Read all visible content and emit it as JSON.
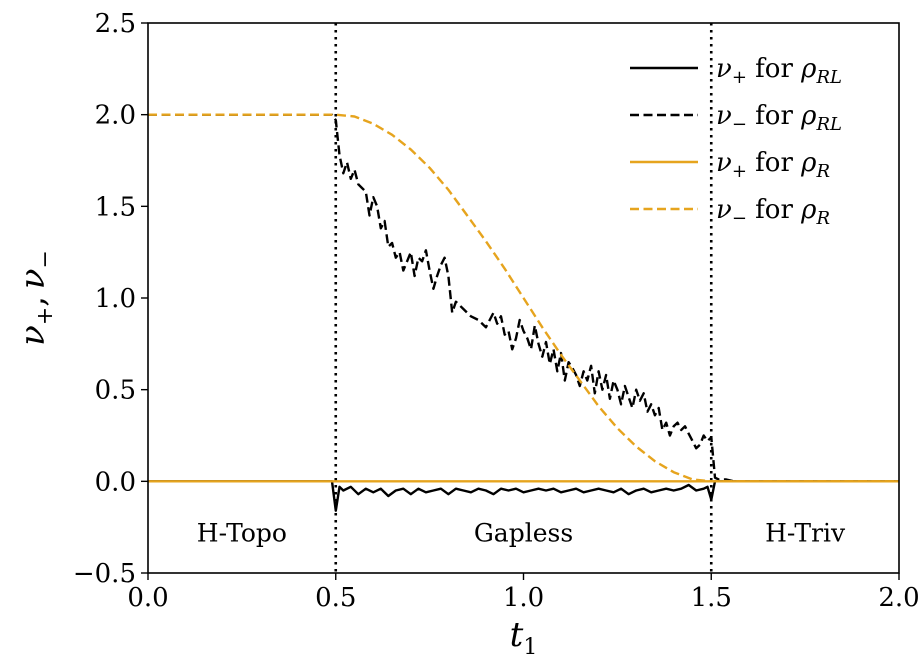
{
  "chart_data": {
    "type": "line",
    "xlabel": "t1",
    "ylabel": "ν+, ν−",
    "xlim": [
      0.0,
      2.0
    ],
    "ylim": [
      -0.5,
      2.5
    ],
    "xticks": [
      0.0,
      0.5,
      1.0,
      1.5,
      2.0
    ],
    "xtick_labels": [
      "0.0",
      "0.5",
      "1.0",
      "1.5",
      "2.0"
    ],
    "yticks": [
      -0.5,
      0.0,
      0.5,
      1.0,
      1.5,
      2.0,
      2.5
    ],
    "ytick_labels": [
      "−0.5",
      "0.0",
      "0.5",
      "1.0",
      "1.5",
      "2.0",
      "2.5"
    ],
    "grid": false,
    "legend_placement": "top-right",
    "vlines": [
      0.5,
      1.5
    ],
    "region_labels": [
      {
        "text": "H-Topo",
        "x": 0.25,
        "y": -0.28
      },
      {
        "text": "Gapless",
        "x": 1.0,
        "y": -0.28
      },
      {
        "text": "H-Triv",
        "x": 1.75,
        "y": -0.28
      }
    ],
    "series": [
      {
        "name": "ν+ for ρRL",
        "legend_symbol": "ν",
        "legend_sub": "+",
        "legend_mid": " for ",
        "legend_rho_sub": "RL",
        "color": "#000000",
        "dash": "solid",
        "x": [
          0.0,
          0.49,
          0.5,
          0.51,
          0.52,
          0.54,
          0.56,
          0.58,
          0.6,
          0.62,
          0.64,
          0.66,
          0.68,
          0.7,
          0.72,
          0.74,
          0.76,
          0.78,
          0.8,
          0.82,
          0.84,
          0.86,
          0.88,
          0.9,
          0.92,
          0.94,
          0.96,
          0.98,
          1.0,
          1.02,
          1.04,
          1.06,
          1.08,
          1.1,
          1.12,
          1.14,
          1.16,
          1.18,
          1.2,
          1.22,
          1.24,
          1.26,
          1.28,
          1.3,
          1.32,
          1.34,
          1.36,
          1.38,
          1.4,
          1.42,
          1.44,
          1.46,
          1.48,
          1.49,
          1.5,
          1.51,
          1.52,
          1.55,
          1.6,
          2.0
        ],
        "y": [
          0.0,
          0.0,
          -0.16,
          -0.03,
          -0.05,
          -0.03,
          -0.07,
          -0.04,
          -0.06,
          -0.04,
          -0.08,
          -0.05,
          -0.04,
          -0.07,
          -0.04,
          -0.06,
          -0.05,
          -0.04,
          -0.07,
          -0.04,
          -0.05,
          -0.06,
          -0.04,
          -0.05,
          -0.07,
          -0.04,
          -0.05,
          -0.04,
          -0.06,
          -0.05,
          -0.04,
          -0.05,
          -0.04,
          -0.06,
          -0.05,
          -0.04,
          -0.06,
          -0.05,
          -0.04,
          -0.05,
          -0.06,
          -0.04,
          -0.07,
          -0.05,
          -0.04,
          -0.06,
          -0.05,
          -0.04,
          -0.05,
          -0.04,
          -0.02,
          -0.05,
          -0.04,
          -0.03,
          -0.1,
          0.0,
          0.0,
          0.0,
          0.0,
          0.0
        ]
      },
      {
        "name": "ν− for ρRL",
        "legend_symbol": "ν",
        "legend_sub": "−",
        "legend_mid": " for ",
        "legend_rho_sub": "RL",
        "color": "#000000",
        "dash": "dashed",
        "x": [
          0.0,
          0.49,
          0.5,
          0.51,
          0.52,
          0.53,
          0.54,
          0.55,
          0.56,
          0.57,
          0.58,
          0.59,
          0.6,
          0.61,
          0.62,
          0.63,
          0.64,
          0.65,
          0.66,
          0.67,
          0.68,
          0.69,
          0.7,
          0.71,
          0.72,
          0.73,
          0.74,
          0.75,
          0.76,
          0.77,
          0.78,
          0.79,
          0.8,
          0.81,
          0.82,
          0.84,
          0.86,
          0.88,
          0.9,
          0.91,
          0.92,
          0.93,
          0.94,
          0.95,
          0.96,
          0.97,
          0.98,
          0.99,
          1.0,
          1.01,
          1.02,
          1.03,
          1.04,
          1.05,
          1.06,
          1.07,
          1.08,
          1.09,
          1.1,
          1.11,
          1.12,
          1.13,
          1.14,
          1.15,
          1.16,
          1.17,
          1.18,
          1.19,
          1.2,
          1.21,
          1.22,
          1.23,
          1.24,
          1.25,
          1.26,
          1.27,
          1.28,
          1.29,
          1.3,
          1.31,
          1.32,
          1.33,
          1.34,
          1.35,
          1.36,
          1.37,
          1.38,
          1.39,
          1.4,
          1.41,
          1.42,
          1.43,
          1.44,
          1.45,
          1.46,
          1.47,
          1.48,
          1.49,
          1.5,
          1.51,
          1.52,
          1.54,
          1.56,
          1.6,
          1.7,
          1.8,
          2.0
        ],
        "y": [
          2.0,
          2.0,
          1.97,
          1.78,
          1.68,
          1.74,
          1.65,
          1.7,
          1.62,
          1.6,
          1.58,
          1.45,
          1.55,
          1.5,
          1.38,
          1.42,
          1.28,
          1.3,
          1.22,
          1.25,
          1.15,
          1.2,
          1.25,
          1.12,
          1.22,
          1.2,
          1.26,
          1.15,
          1.05,
          1.12,
          1.18,
          1.22,
          1.12,
          0.92,
          0.98,
          0.94,
          0.9,
          0.88,
          0.84,
          0.88,
          0.92,
          0.86,
          0.9,
          0.8,
          0.82,
          0.72,
          0.78,
          0.88,
          0.82,
          0.78,
          0.72,
          0.85,
          0.75,
          0.68,
          0.76,
          0.64,
          0.72,
          0.6,
          0.7,
          0.55,
          0.65,
          0.62,
          0.58,
          0.52,
          0.6,
          0.55,
          0.63,
          0.48,
          0.6,
          0.5,
          0.58,
          0.45,
          0.55,
          0.5,
          0.42,
          0.52,
          0.46,
          0.4,
          0.5,
          0.44,
          0.48,
          0.38,
          0.42,
          0.36,
          0.4,
          0.28,
          0.32,
          0.25,
          0.3,
          0.32,
          0.28,
          0.3,
          0.26,
          0.22,
          0.18,
          0.2,
          0.25,
          0.22,
          0.24,
          0.02,
          0.01,
          0.01,
          0.0,
          0.0,
          0.0,
          0.0,
          0.0
        ]
      },
      {
        "name": "ν+ for ρR",
        "legend_symbol": "ν",
        "legend_sub": "+",
        "legend_mid": " for ",
        "legend_rho_sub": "R",
        "color": "#e6a41e",
        "dash": "solid",
        "x": [
          0.0,
          2.0
        ],
        "y": [
          0.0,
          0.0
        ]
      },
      {
        "name": "ν− for ρR",
        "legend_symbol": "ν",
        "legend_sub": "−",
        "legend_mid": " for ",
        "legend_rho_sub": "R",
        "color": "#e6a41e",
        "dash": "dashed",
        "x": [
          0.0,
          0.5,
          0.55,
          0.6,
          0.65,
          0.7,
          0.75,
          0.8,
          0.85,
          0.9,
          0.95,
          1.0,
          1.05,
          1.1,
          1.15,
          1.2,
          1.25,
          1.3,
          1.35,
          1.4,
          1.45,
          1.5,
          1.55,
          1.6,
          2.0
        ],
        "y": [
          2.0,
          2.0,
          1.99,
          1.95,
          1.89,
          1.81,
          1.71,
          1.59,
          1.45,
          1.31,
          1.16,
          1.0,
          0.84,
          0.69,
          0.55,
          0.41,
          0.29,
          0.19,
          0.11,
          0.05,
          0.01,
          0.0,
          0.0,
          0.0,
          0.0
        ]
      }
    ]
  }
}
